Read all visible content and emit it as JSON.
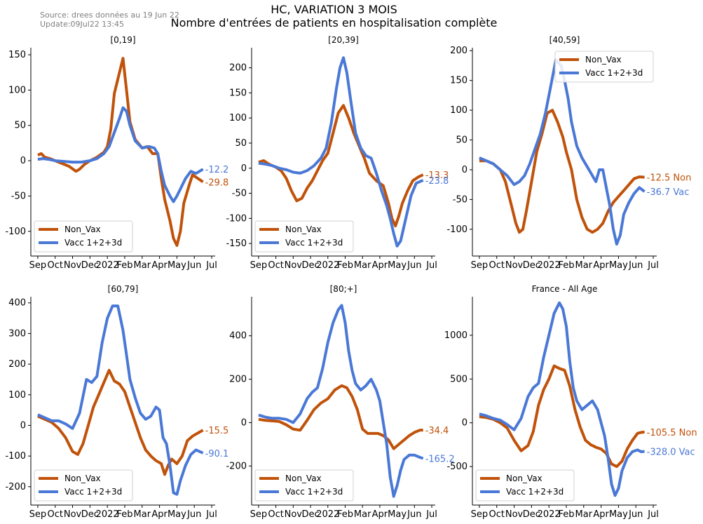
{
  "header": {
    "source": "Source: drees données au 19 Jun 22",
    "update": "Update:09Jul22 13:45",
    "title": "HC, VARIATION 3 MOIS",
    "subtitle": "Nombre d'entrées de patients en hospitalisation complète"
  },
  "colors": {
    "non_vax": "#c0520a",
    "vacc": "#4a78d6"
  },
  "chart_data": [
    {
      "type": "line",
      "title": "[0,19]",
      "x_ticks": [
        "Sep",
        "Oct",
        "Nov",
        "Dec",
        "2022",
        "Feb",
        "Mar",
        "Apr",
        "May",
        "Jun",
        "Jul"
      ],
      "ylim": [
        -135,
        160
      ],
      "y_ticks": [
        -100,
        -50,
        0,
        50,
        100,
        150
      ],
      "legend": {
        "placement": "lower-left",
        "entries": [
          "Non_Vax",
          "Vacc 1+2+3d"
        ]
      },
      "series": [
        {
          "name": "Non_Vax",
          "end_label": "-29.8",
          "x": [
            0,
            0.2,
            0.4,
            0.7,
            1.0,
            1.3,
            1.8,
            2.2,
            2.4,
            2.7,
            3.0,
            3.4,
            3.8,
            4.0,
            4.2,
            4.4,
            4.7,
            4.9,
            5.1,
            5.3,
            5.6,
            6.0,
            6.3,
            6.6,
            6.9,
            7.1,
            7.3,
            7.6,
            7.8,
            8.0,
            8.2,
            8.4,
            8.7,
            8.9,
            9.2,
            9.5
          ],
          "y": [
            8,
            10,
            5,
            3,
            0,
            -3,
            -8,
            -15,
            -12,
            -5,
            0,
            5,
            12,
            20,
            45,
            95,
            125,
            145,
            100,
            55,
            30,
            18,
            20,
            10,
            10,
            -25,
            -55,
            -85,
            -110,
            -120,
            -100,
            -60,
            -35,
            -20,
            -25,
            -30
          ]
        },
        {
          "name": "Vacc 1+2+3d",
          "end_label": "-12.2",
          "x": [
            0,
            0.3,
            0.6,
            1.0,
            1.5,
            2.0,
            2.5,
            3.0,
            3.4,
            3.8,
            4.1,
            4.4,
            4.7,
            4.9,
            5.1,
            5.3,
            5.6,
            6.0,
            6.4,
            6.7,
            6.9,
            7.1,
            7.3,
            7.6,
            7.8,
            8.0,
            8.2,
            8.5,
            8.8,
            9.1,
            9.5
          ],
          "y": [
            2,
            3,
            2,
            0,
            -1,
            -2,
            -2,
            0,
            3,
            10,
            20,
            40,
            60,
            75,
            70,
            50,
            28,
            18,
            20,
            18,
            10,
            -15,
            -35,
            -50,
            -58,
            -50,
            -40,
            -25,
            -15,
            -18,
            -12
          ]
        }
      ]
    },
    {
      "type": "line",
      "title": "[20,39]",
      "x_ticks": [
        "Sep",
        "Oct",
        "Nov",
        "Dec",
        "2022",
        "Feb",
        "Mar",
        "Apr",
        "May",
        "Jun",
        "Jul"
      ],
      "ylim": [
        -175,
        240
      ],
      "y_ticks": [
        -150,
        -100,
        -50,
        0,
        50,
        100,
        150,
        200
      ],
      "legend": {
        "placement": "lower-left",
        "entries": [
          "Non_Vax",
          "Vacc 1+2+3d"
        ]
      },
      "series": [
        {
          "name": "Non_Vax",
          "end_label": "-13.3",
          "x": [
            0,
            0.3,
            0.6,
            1.0,
            1.3,
            1.6,
            1.9,
            2.2,
            2.5,
            2.8,
            3.1,
            3.4,
            3.7,
            4.0,
            4.3,
            4.6,
            4.9,
            5.2,
            5.5,
            5.8,
            6.1,
            6.4,
            6.8,
            7.2,
            7.5,
            7.7,
            7.9,
            8.1,
            8.3,
            8.6,
            8.9,
            9.2,
            9.5
          ],
          "y": [
            12,
            15,
            8,
            2,
            -5,
            -20,
            -45,
            -65,
            -60,
            -40,
            -25,
            -5,
            15,
            30,
            70,
            110,
            125,
            100,
            70,
            45,
            20,
            -10,
            -25,
            -35,
            -70,
            -100,
            -115,
            -95,
            -70,
            -45,
            -25,
            -18,
            -13
          ]
        },
        {
          "name": "Vacc 1+2+3d",
          "end_label": "-23.8",
          "x": [
            0,
            0.4,
            0.8,
            1.2,
            1.6,
            2.0,
            2.4,
            2.8,
            3.2,
            3.6,
            3.9,
            4.2,
            4.5,
            4.7,
            4.9,
            5.1,
            5.3,
            5.6,
            5.9,
            6.2,
            6.5,
            6.8,
            7.1,
            7.4,
            7.6,
            7.8,
            8.0,
            8.2,
            8.5,
            8.8,
            9.1,
            9.5
          ],
          "y": [
            10,
            8,
            5,
            0,
            -3,
            -8,
            -10,
            -5,
            5,
            20,
            40,
            90,
            160,
            200,
            220,
            190,
            140,
            70,
            40,
            25,
            20,
            -10,
            -45,
            -75,
            -100,
            -130,
            -155,
            -145,
            -100,
            -55,
            -30,
            -24
          ]
        }
      ]
    },
    {
      "type": "line",
      "title": "[40,59]",
      "x_ticks": [
        "Sep",
        "Oct",
        "Nov",
        "Dec",
        "2022",
        "Feb",
        "Mar",
        "Apr",
        "May",
        "Jun",
        "Jul"
      ],
      "ylim": [
        -145,
        205
      ],
      "y_ticks": [
        -100,
        -50,
        0,
        50,
        100,
        150,
        200
      ],
      "legend": {
        "placement": "upper-right",
        "entries": [
          "Non_Vax",
          "Vacc 1+2+3d"
        ]
      },
      "series": [
        {
          "name": "Non_Vax",
          "end_label": "-12.5 Non",
          "x": [
            0,
            0.4,
            0.8,
            1.2,
            1.5,
            1.8,
            2.1,
            2.3,
            2.5,
            2.7,
            3.0,
            3.3,
            3.6,
            3.9,
            4.2,
            4.5,
            4.8,
            5.0,
            5.3,
            5.6,
            5.9,
            6.2,
            6.5,
            6.8,
            7.1,
            7.4,
            7.7,
            8.0,
            8.3,
            8.6,
            8.9,
            9.2,
            9.5
          ],
          "y": [
            15,
            15,
            10,
            0,
            -20,
            -55,
            -90,
            -105,
            -100,
            -70,
            -20,
            30,
            60,
            95,
            100,
            80,
            55,
            30,
            0,
            -50,
            -80,
            -100,
            -105,
            -100,
            -90,
            -70,
            -55,
            -45,
            -35,
            -25,
            -15,
            -12,
            -12.5
          ]
        },
        {
          "name": "Vacc 1+2+3d",
          "end_label": "-36.7 Vac",
          "x": [
            0,
            0.4,
            0.8,
            1.2,
            1.6,
            2.0,
            2.3,
            2.6,
            2.9,
            3.2,
            3.5,
            3.8,
            4.1,
            4.4,
            4.7,
            4.9,
            5.1,
            5.3,
            5.6,
            5.9,
            6.2,
            6.5,
            6.7,
            6.9,
            7.1,
            7.3,
            7.5,
            7.7,
            7.9,
            8.1,
            8.3,
            8.6,
            8.9,
            9.2,
            9.5
          ],
          "y": [
            20,
            15,
            10,
            0,
            -10,
            -25,
            -20,
            -10,
            10,
            35,
            60,
            95,
            140,
            185,
            175,
            150,
            120,
            80,
            40,
            20,
            5,
            -10,
            -20,
            0,
            0,
            -30,
            -60,
            -100,
            -125,
            -110,
            -75,
            -55,
            -40,
            -30,
            -36.7
          ]
        }
      ]
    },
    {
      "type": "line",
      "title": "[60,79]",
      "x_ticks": [
        "Sep",
        "Oct",
        "Nov",
        "Dec",
        "2022",
        "Feb",
        "Mar",
        "Apr",
        "May",
        "Jun",
        "Jul"
      ],
      "ylim": [
        -260,
        420
      ],
      "y_ticks": [
        -200,
        -100,
        0,
        100,
        200,
        300,
        400
      ],
      "legend": {
        "placement": "lower-left",
        "entries": [
          "Non_Vax",
          "Vacc 1+2+3d"
        ]
      },
      "series": [
        {
          "name": "Non_Vax",
          "end_label": "-15.5",
          "x": [
            0,
            0.4,
            0.8,
            1.2,
            1.6,
            2.0,
            2.3,
            2.6,
            2.9,
            3.2,
            3.5,
            3.8,
            4.1,
            4.4,
            4.7,
            5.0,
            5.3,
            5.6,
            5.9,
            6.2,
            6.5,
            6.8,
            7.1,
            7.3,
            7.5,
            7.7,
            8.0,
            8.3,
            8.6,
            8.9,
            9.2,
            9.5
          ],
          "y": [
            30,
            20,
            10,
            -10,
            -40,
            -85,
            -95,
            -60,
            0,
            60,
            100,
            140,
            180,
            145,
            135,
            110,
            60,
            10,
            -40,
            -80,
            -100,
            -115,
            -125,
            -160,
            -130,
            -110,
            -125,
            -100,
            -50,
            -35,
            -25,
            -15.5
          ]
        },
        {
          "name": "Vacc 1+2+3d",
          "end_label": "-90.1",
          "x": [
            0,
            0.4,
            0.8,
            1.2,
            1.6,
            2.0,
            2.4,
            2.8,
            3.1,
            3.4,
            3.7,
            4.0,
            4.3,
            4.6,
            4.9,
            5.1,
            5.3,
            5.6,
            5.9,
            6.2,
            6.5,
            6.8,
            7.0,
            7.2,
            7.4,
            7.6,
            7.8,
            8.0,
            8.2,
            8.5,
            8.8,
            9.1,
            9.5
          ],
          "y": [
            35,
            25,
            15,
            15,
            5,
            -10,
            40,
            150,
            140,
            160,
            270,
            350,
            390,
            390,
            310,
            230,
            150,
            90,
            40,
            20,
            30,
            60,
            50,
            -40,
            -60,
            -130,
            -220,
            -225,
            -180,
            -130,
            -95,
            -80,
            -90
          ]
        }
      ]
    },
    {
      "type": "line",
      "title": "[80;+]",
      "x_ticks": [
        "Sep",
        "Oct",
        "Nov",
        "Dec",
        "2022",
        "Feb",
        "Mar",
        "Apr",
        "May",
        "Jun",
        "Jul"
      ],
      "ylim": [
        -380,
        580
      ],
      "y_ticks": [
        -200,
        0,
        200,
        400
      ],
      "legend": {
        "placement": "lower-left",
        "entries": [
          "Non_Vax",
          "Vacc 1+2+3d"
        ]
      },
      "series": [
        {
          "name": "Non_Vax",
          "end_label": "-34.4",
          "x": [
            0,
            0.4,
            0.8,
            1.2,
            1.6,
            2.0,
            2.4,
            2.8,
            3.2,
            3.6,
            4.0,
            4.4,
            4.8,
            5.1,
            5.4,
            5.7,
            6.0,
            6.3,
            6.6,
            6.9,
            7.2,
            7.5,
            7.8,
            8.1,
            8.4,
            8.7,
            9.0,
            9.3,
            9.5
          ],
          "y": [
            15,
            10,
            8,
            5,
            -10,
            -30,
            -35,
            10,
            60,
            90,
            110,
            150,
            170,
            160,
            120,
            60,
            -30,
            -50,
            -50,
            -50,
            -60,
            -80,
            -120,
            -100,
            -80,
            -60,
            -45,
            -35,
            -34.4
          ]
        },
        {
          "name": "Vacc 1+2+3d",
          "end_label": "-165.2",
          "x": [
            0,
            0.4,
            0.8,
            1.2,
            1.6,
            2.0,
            2.4,
            2.8,
            3.1,
            3.4,
            3.7,
            4.0,
            4.3,
            4.6,
            4.8,
            5.0,
            5.2,
            5.4,
            5.6,
            5.9,
            6.2,
            6.5,
            6.8,
            7.0,
            7.2,
            7.4,
            7.6,
            7.8,
            8.0,
            8.2,
            8.4,
            8.7,
            9.0,
            9.3,
            9.5
          ],
          "y": [
            35,
            25,
            20,
            20,
            15,
            0,
            40,
            110,
            140,
            160,
            250,
            370,
            460,
            520,
            540,
            460,
            330,
            240,
            180,
            150,
            170,
            200,
            150,
            100,
            0,
            -100,
            -250,
            -340,
            -290,
            -220,
            -170,
            -150,
            -150,
            -160,
            -165
          ]
        }
      ]
    },
    {
      "type": "line",
      "title": "France - All Age",
      "x_ticks": [
        "Sep",
        "Oct",
        "Nov",
        "Dec",
        "2022",
        "Feb",
        "Mar",
        "Apr",
        "May",
        "Jun",
        "Jul"
      ],
      "ylim": [
        -940,
        1440
      ],
      "y_ticks": [
        -500,
        0,
        500,
        1000
      ],
      "legend": {
        "placement": "lower-left",
        "entries": [
          "Non_Vax",
          "Vacc 1+2+3d"
        ]
      },
      "series": [
        {
          "name": "Non_Vax",
          "end_label": "-105.5 Non",
          "x": [
            0,
            0.4,
            0.8,
            1.2,
            1.6,
            2.0,
            2.4,
            2.8,
            3.1,
            3.4,
            3.7,
            4.0,
            4.3,
            4.6,
            4.9,
            5.2,
            5.5,
            5.8,
            6.1,
            6.4,
            6.7,
            7.0,
            7.3,
            7.6,
            7.9,
            8.2,
            8.5,
            8.8,
            9.1,
            9.3,
            9.5
          ],
          "y": [
            70,
            60,
            40,
            0,
            -60,
            -200,
            -320,
            -260,
            -100,
            200,
            380,
            500,
            650,
            620,
            600,
            420,
            150,
            -50,
            -200,
            -250,
            -280,
            -300,
            -350,
            -470,
            -500,
            -440,
            -300,
            -200,
            -120,
            -110,
            -105.5
          ]
        },
        {
          "name": "Vacc 1+2+3d",
          "end_label": "-328.0 Vac",
          "x": [
            0,
            0.4,
            0.8,
            1.2,
            1.6,
            2.0,
            2.4,
            2.8,
            3.1,
            3.4,
            3.7,
            4.0,
            4.3,
            4.6,
            4.8,
            5.0,
            5.2,
            5.4,
            5.6,
            5.9,
            6.2,
            6.5,
            6.8,
            7.0,
            7.2,
            7.4,
            7.6,
            7.8,
            8.0,
            8.2,
            8.5,
            8.8,
            9.1,
            9.3,
            9.5
          ],
          "y": [
            100,
            80,
            50,
            30,
            -20,
            -80,
            50,
            300,
            400,
            450,
            750,
            1000,
            1250,
            1370,
            1300,
            1100,
            700,
            400,
            250,
            150,
            200,
            250,
            150,
            0,
            -150,
            -400,
            -700,
            -830,
            -750,
            -550,
            -400,
            -330,
            -310,
            -330,
            -328
          ]
        }
      ]
    }
  ]
}
